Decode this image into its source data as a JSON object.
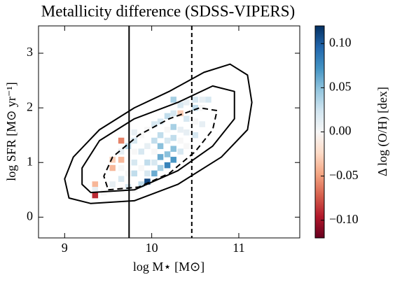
{
  "chart_data": {
    "type": "heatmap-scatter",
    "title": "Metallicity difference (SDSS-VIPERS)",
    "x_label": "log M⋆ [M⊙]",
    "y_label": "log SFR [M⊙ yr⁻¹]",
    "colorbar_label": "Δ log (O/H) [dex]",
    "xlim": [
      8.7,
      11.7
    ],
    "ylim": [
      -0.38,
      3.5
    ],
    "xticks": [
      9,
      10,
      11
    ],
    "yticks": [
      0,
      1,
      2,
      3
    ],
    "clim": [
      -0.12,
      0.12
    ],
    "cticks": [
      {
        "value": -0.1,
        "label": "−0.10"
      },
      {
        "value": -0.05,
        "label": "−0.05"
      },
      {
        "value": 0,
        "label": "0.00"
      },
      {
        "value": 0.05,
        "label": "0.05"
      },
      {
        "value": 0.1,
        "label": "0.10"
      }
    ],
    "vlines": [
      {
        "x": 9.74,
        "style": "solid"
      },
      {
        "x": 10.46,
        "style": "dashed"
      }
    ],
    "contours": [
      {
        "style": "solid",
        "x": [
          9.05,
          9.3,
          9.8,
          10.3,
          10.8,
          11.1,
          11.15,
          11.1,
          10.9,
          10.6,
          10.2,
          9.8,
          9.4,
          9.1,
          9.0
        ],
        "y": [
          0.35,
          0.25,
          0.3,
          0.6,
          1.1,
          1.6,
          2.1,
          2.6,
          2.8,
          2.65,
          2.3,
          2.0,
          1.6,
          1.1,
          0.7
        ]
      },
      {
        "style": "solid",
        "x": [
          9.3,
          9.8,
          10.3,
          10.7,
          10.95,
          10.95,
          10.7,
          10.3,
          9.8,
          9.4,
          9.2,
          9.2
        ],
        "y": [
          0.45,
          0.5,
          0.85,
          1.3,
          1.8,
          2.3,
          2.4,
          2.1,
          1.8,
          1.4,
          0.9,
          0.6
        ]
      },
      {
        "style": "dashed",
        "x": [
          9.5,
          9.85,
          10.2,
          10.5,
          10.7,
          10.75,
          10.55,
          10.2,
          9.85,
          9.55,
          9.45
        ],
        "y": [
          0.5,
          0.55,
          0.8,
          1.2,
          1.6,
          1.95,
          2.0,
          1.8,
          1.5,
          1.1,
          0.75
        ]
      }
    ],
    "x": [
      9.35,
      9.35,
      9.35,
      9.45,
      9.55,
      9.55,
      9.55,
      9.65,
      9.65,
      9.65,
      9.65,
      9.65,
      9.65,
      9.73,
      9.73,
      9.73,
      9.8,
      9.8,
      9.8,
      9.8,
      9.8,
      9.8,
      9.88,
      9.88,
      9.88,
      9.88,
      9.95,
      9.95,
      9.95,
      9.95,
      9.95,
      10.03,
      10.03,
      10.03,
      10.03,
      10.03,
      10.1,
      10.1,
      10.1,
      10.1,
      10.1,
      10.18,
      10.18,
      10.18,
      10.18,
      10.18,
      10.25,
      10.25,
      10.25,
      10.25,
      10.25,
      10.25,
      10.33,
      10.33,
      10.33,
      10.33,
      10.33,
      10.4,
      10.4,
      10.4,
      10.4,
      10.5,
      10.5,
      10.5,
      10.5,
      10.58,
      10.58,
      10.58,
      10.65
    ],
    "y": [
      0.4,
      0.6,
      0.5,
      0.45,
      0.6,
      0.9,
      1.05,
      0.5,
      0.7,
      0.9,
      1.05,
      1.2,
      1.4,
      1.3,
      0.8,
      0.55,
      0.5,
      0.8,
      1.0,
      1.2,
      1.4,
      1.55,
      0.6,
      0.9,
      1.2,
      1.5,
      0.65,
      0.8,
      1.0,
      1.3,
      1.6,
      0.8,
      1.0,
      1.2,
      1.4,
      1.7,
      0.9,
      1.1,
      1.3,
      1.5,
      1.75,
      0.95,
      1.15,
      1.4,
      1.6,
      1.85,
      1.05,
      1.25,
      1.45,
      1.65,
      1.9,
      2.15,
      1.2,
      1.4,
      1.6,
      1.9,
      2.05,
      1.3,
      1.55,
      1.8,
      2.1,
      1.5,
      1.75,
      2.0,
      2.15,
      1.7,
      2.0,
      2.15,
      2.15
    ],
    "values": [
      -0.09,
      -0.04,
      0.01,
      0.0,
      0.01,
      -0.04,
      -0.03,
      0.0,
      0.02,
      0.0,
      -0.04,
      0.01,
      -0.06,
      0.03,
      0.0,
      0.02,
      0.0,
      0.03,
      0.02,
      0.0,
      0.02,
      0.01,
      0.03,
      0.0,
      0.02,
      0.0,
      0.11,
      0.02,
      0.03,
      0.01,
      0.0,
      0.06,
      0.02,
      0.0,
      0.03,
      0.02,
      0.04,
      0.06,
      0.05,
      0.03,
      0.02,
      0.08,
      0.05,
      0.02,
      0.0,
      0.03,
      0.07,
      0.05,
      0.03,
      0.04,
      0.02,
      0.04,
      0.02,
      0.0,
      0.01,
      -0.03,
      0.02,
      0.0,
      0.01,
      0.02,
      0.01,
      0.02,
      0.0,
      0.03,
      0.02,
      0.01,
      0.0,
      0.01,
      0.02
    ]
  }
}
